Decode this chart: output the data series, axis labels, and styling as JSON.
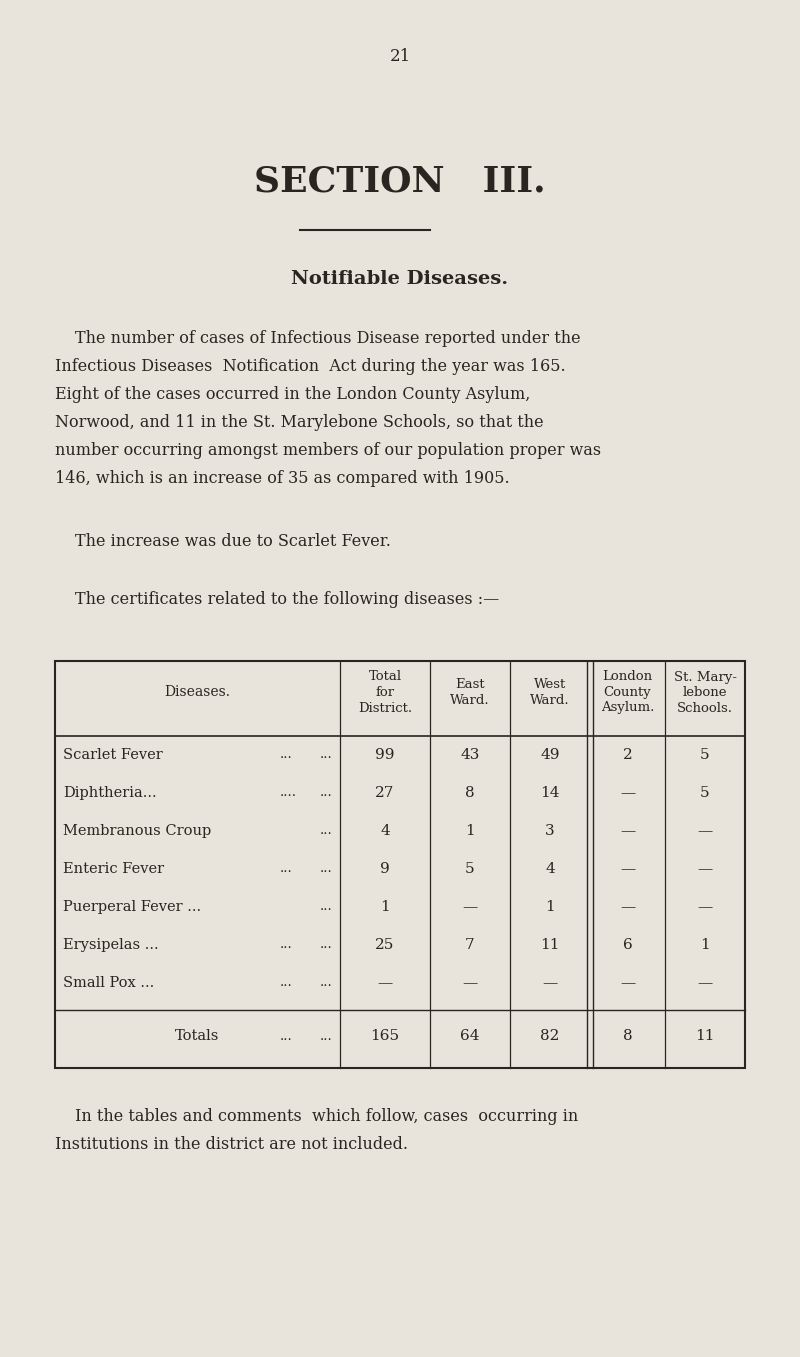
{
  "page_number": "21",
  "section_title": "SECTION   III.",
  "section_subtitle": "Notifiable Diseases.",
  "para1_lines": [
    "The number of cases of Infectious Disease reported under the",
    "Infectious Diseases  Notification  Act during the year was 165.",
    "Eight of the cases occurred in the London County Asylum,",
    "Norwood, and 11 in the St. Marylebone Schools, so that the",
    "number occurring amongst members of our population proper was",
    "146, which is an increase of 35 as compared with 1905."
  ],
  "sentence1": "The increase was due to Scarlet Fever.",
  "sentence2": "The certificates related to the following diseases :—",
  "col_headers": [
    "Diseases.",
    "Total\nfor\nDistrict.",
    "East\nWard.",
    "West\nWard.",
    "London\nCounty\nAsylum.",
    "St. Mary-\nlebone\nSchools."
  ],
  "disease_rows": [
    [
      "Scarlet Fever",
      "...",
      "...",
      "99",
      "43",
      "49",
      "2",
      "5"
    ],
    [
      "Diphtheria...",
      "....",
      "...",
      "27",
      "8",
      "14",
      "—",
      "5"
    ],
    [
      "Membranous Croup",
      "",
      "...",
      "4",
      "1",
      "3",
      "—",
      "—"
    ],
    [
      "Enteric Fever",
      "...",
      "...",
      "9",
      "5",
      "4",
      "—",
      "—"
    ],
    [
      "Puerperal Fever ...",
      "",
      "...",
      "1",
      "—",
      "1",
      "—",
      "—"
    ],
    [
      "Erysipelas ...",
      "...",
      "...",
      "25",
      "7",
      "11",
      "6",
      "1"
    ],
    [
      "Small Pox ...",
      "...",
      "...",
      "—",
      "—",
      "—",
      "—",
      "—"
    ]
  ],
  "totals": [
    "165",
    "64",
    "82",
    "8",
    "11"
  ],
  "footer_lines": [
    "In the tables and comments  which follow, cases  occurring in",
    "Institutions in the district are not included."
  ],
  "bg_color": "#e8e4dc",
  "text_color": "#2a2520"
}
